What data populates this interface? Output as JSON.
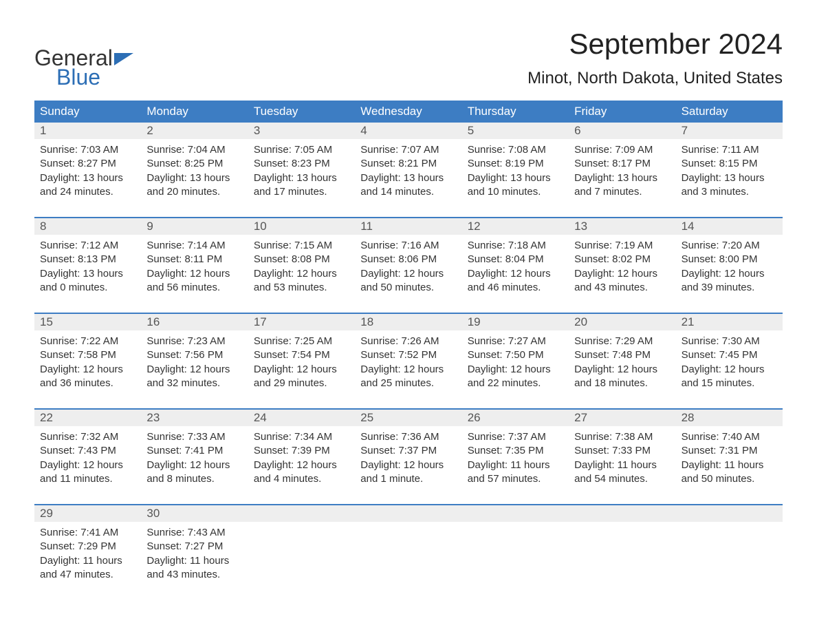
{
  "brand": {
    "word1": "General",
    "word2": "Blue"
  },
  "title": "September 2024",
  "location": "Minot, North Dakota, United States",
  "colors": {
    "header_bg": "#3d7dc3",
    "brand_blue": "#2c6eb5",
    "stripe": "#eeeeee",
    "row_border": "#3d7dc3",
    "text": "#333333"
  },
  "days_of_week": [
    "Sunday",
    "Monday",
    "Tuesday",
    "Wednesday",
    "Thursday",
    "Friday",
    "Saturday"
  ],
  "weeks": [
    [
      {
        "n": "1",
        "sr": "Sunrise: 7:03 AM",
        "ss": "Sunset: 8:27 PM",
        "dl": "Daylight: 13 hours and 24 minutes."
      },
      {
        "n": "2",
        "sr": "Sunrise: 7:04 AM",
        "ss": "Sunset: 8:25 PM",
        "dl": "Daylight: 13 hours and 20 minutes."
      },
      {
        "n": "3",
        "sr": "Sunrise: 7:05 AM",
        "ss": "Sunset: 8:23 PM",
        "dl": "Daylight: 13 hours and 17 minutes."
      },
      {
        "n": "4",
        "sr": "Sunrise: 7:07 AM",
        "ss": "Sunset: 8:21 PM",
        "dl": "Daylight: 13 hours and 14 minutes."
      },
      {
        "n": "5",
        "sr": "Sunrise: 7:08 AM",
        "ss": "Sunset: 8:19 PM",
        "dl": "Daylight: 13 hours and 10 minutes."
      },
      {
        "n": "6",
        "sr": "Sunrise: 7:09 AM",
        "ss": "Sunset: 8:17 PM",
        "dl": "Daylight: 13 hours and 7 minutes."
      },
      {
        "n": "7",
        "sr": "Sunrise: 7:11 AM",
        "ss": "Sunset: 8:15 PM",
        "dl": "Daylight: 13 hours and 3 minutes."
      }
    ],
    [
      {
        "n": "8",
        "sr": "Sunrise: 7:12 AM",
        "ss": "Sunset: 8:13 PM",
        "dl": "Daylight: 13 hours and 0 minutes."
      },
      {
        "n": "9",
        "sr": "Sunrise: 7:14 AM",
        "ss": "Sunset: 8:11 PM",
        "dl": "Daylight: 12 hours and 56 minutes."
      },
      {
        "n": "10",
        "sr": "Sunrise: 7:15 AM",
        "ss": "Sunset: 8:08 PM",
        "dl": "Daylight: 12 hours and 53 minutes."
      },
      {
        "n": "11",
        "sr": "Sunrise: 7:16 AM",
        "ss": "Sunset: 8:06 PM",
        "dl": "Daylight: 12 hours and 50 minutes."
      },
      {
        "n": "12",
        "sr": "Sunrise: 7:18 AM",
        "ss": "Sunset: 8:04 PM",
        "dl": "Daylight: 12 hours and 46 minutes."
      },
      {
        "n": "13",
        "sr": "Sunrise: 7:19 AM",
        "ss": "Sunset: 8:02 PM",
        "dl": "Daylight: 12 hours and 43 minutes."
      },
      {
        "n": "14",
        "sr": "Sunrise: 7:20 AM",
        "ss": "Sunset: 8:00 PM",
        "dl": "Daylight: 12 hours and 39 minutes."
      }
    ],
    [
      {
        "n": "15",
        "sr": "Sunrise: 7:22 AM",
        "ss": "Sunset: 7:58 PM",
        "dl": "Daylight: 12 hours and 36 minutes."
      },
      {
        "n": "16",
        "sr": "Sunrise: 7:23 AM",
        "ss": "Sunset: 7:56 PM",
        "dl": "Daylight: 12 hours and 32 minutes."
      },
      {
        "n": "17",
        "sr": "Sunrise: 7:25 AM",
        "ss": "Sunset: 7:54 PM",
        "dl": "Daylight: 12 hours and 29 minutes."
      },
      {
        "n": "18",
        "sr": "Sunrise: 7:26 AM",
        "ss": "Sunset: 7:52 PM",
        "dl": "Daylight: 12 hours and 25 minutes."
      },
      {
        "n": "19",
        "sr": "Sunrise: 7:27 AM",
        "ss": "Sunset: 7:50 PM",
        "dl": "Daylight: 12 hours and 22 minutes."
      },
      {
        "n": "20",
        "sr": "Sunrise: 7:29 AM",
        "ss": "Sunset: 7:48 PM",
        "dl": "Daylight: 12 hours and 18 minutes."
      },
      {
        "n": "21",
        "sr": "Sunrise: 7:30 AM",
        "ss": "Sunset: 7:45 PM",
        "dl": "Daylight: 12 hours and 15 minutes."
      }
    ],
    [
      {
        "n": "22",
        "sr": "Sunrise: 7:32 AM",
        "ss": "Sunset: 7:43 PM",
        "dl": "Daylight: 12 hours and 11 minutes."
      },
      {
        "n": "23",
        "sr": "Sunrise: 7:33 AM",
        "ss": "Sunset: 7:41 PM",
        "dl": "Daylight: 12 hours and 8 minutes."
      },
      {
        "n": "24",
        "sr": "Sunrise: 7:34 AM",
        "ss": "Sunset: 7:39 PM",
        "dl": "Daylight: 12 hours and 4 minutes."
      },
      {
        "n": "25",
        "sr": "Sunrise: 7:36 AM",
        "ss": "Sunset: 7:37 PM",
        "dl": "Daylight: 12 hours and 1 minute."
      },
      {
        "n": "26",
        "sr": "Sunrise: 7:37 AM",
        "ss": "Sunset: 7:35 PM",
        "dl": "Daylight: 11 hours and 57 minutes."
      },
      {
        "n": "27",
        "sr": "Sunrise: 7:38 AM",
        "ss": "Sunset: 7:33 PM",
        "dl": "Daylight: 11 hours and 54 minutes."
      },
      {
        "n": "28",
        "sr": "Sunrise: 7:40 AM",
        "ss": "Sunset: 7:31 PM",
        "dl": "Daylight: 11 hours and 50 minutes."
      }
    ],
    [
      {
        "n": "29",
        "sr": "Sunrise: 7:41 AM",
        "ss": "Sunset: 7:29 PM",
        "dl": "Daylight: 11 hours and 47 minutes."
      },
      {
        "n": "30",
        "sr": "Sunrise: 7:43 AM",
        "ss": "Sunset: 7:27 PM",
        "dl": "Daylight: 11 hours and 43 minutes."
      },
      null,
      null,
      null,
      null,
      null
    ]
  ]
}
